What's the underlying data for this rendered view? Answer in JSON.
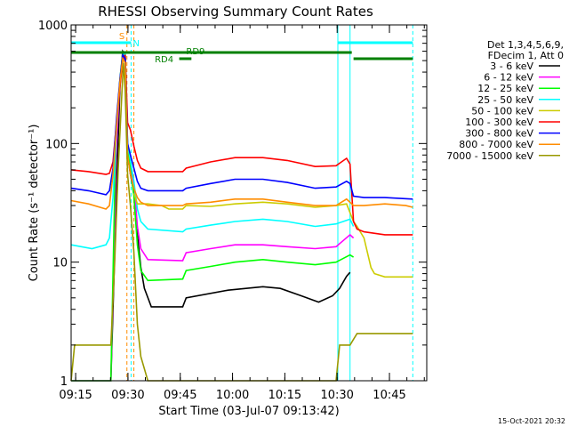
{
  "chart_data": {
    "type": "line",
    "title": "RHESSI Observing Summary Count Rates",
    "xlabel": "Start Time (03-Jul-07 09:13:42)",
    "ylabel": "Count Rate (s⁻¹ detector⁻¹)",
    "yscale": "log",
    "ylim": [
      1,
      1000
    ],
    "xlim_min": [
      0,
      102
    ],
    "x_ticks": [
      {
        "t": 1.3,
        "label": "09:15"
      },
      {
        "t": 16.3,
        "label": "09:30"
      },
      {
        "t": 31.3,
        "label": "09:45"
      },
      {
        "t": 46.3,
        "label": "10:00"
      },
      {
        "t": 61.3,
        "label": "10:15"
      },
      {
        "t": 76.3,
        "label": "10:30"
      },
      {
        "t": 91.3,
        "label": "10:45"
      }
    ],
    "y_ticks": [
      {
        "v": 1,
        "label": "1"
      },
      {
        "v": 10,
        "label": "10"
      },
      {
        "v": 100,
        "label": "100"
      },
      {
        "v": 1000,
        "label": "1000"
      }
    ],
    "legend_header": [
      "Det 1,3,4,5,6,9,",
      "FDecim 1, Att 0"
    ],
    "legend_placement": "right",
    "series": [
      {
        "name": "3 - 6 keV",
        "color": "#000000",
        "points": [
          [
            0,
            1
          ],
          [
            11.4,
            1
          ],
          [
            13.2,
            60
          ],
          [
            14,
            300
          ],
          [
            14.8,
            600
          ],
          [
            15.5,
            560
          ],
          [
            16.2,
            80
          ],
          [
            17,
            55
          ],
          [
            18.2,
            36
          ],
          [
            19,
            17
          ],
          [
            20,
            9
          ],
          [
            21,
            6
          ],
          [
            23,
            4.2
          ],
          [
            32,
            4.2
          ],
          [
            33,
            5
          ],
          [
            45,
            5.8
          ],
          [
            55,
            6.2
          ],
          [
            60,
            6
          ],
          [
            66,
            5.2
          ],
          [
            71,
            4.6
          ],
          [
            75,
            5.2
          ],
          [
            77,
            6
          ],
          [
            79,
            7.6
          ],
          [
            80,
            8.2
          ]
        ]
      },
      {
        "name": "6 - 12 keV",
        "color": "#ff00ff",
        "points": [
          [
            0,
            1
          ],
          [
            11.4,
            1
          ],
          [
            13,
            100
          ],
          [
            14,
            330
          ],
          [
            14.8,
            580
          ],
          [
            15.5,
            500
          ],
          [
            16.2,
            90
          ],
          [
            17,
            62
          ],
          [
            18.2,
            40
          ],
          [
            19,
            20
          ],
          [
            20,
            13
          ],
          [
            22,
            10.5
          ],
          [
            32,
            10.3
          ],
          [
            33,
            12
          ],
          [
            40,
            13
          ],
          [
            47,
            14
          ],
          [
            55,
            14
          ],
          [
            62,
            13.5
          ],
          [
            70,
            13
          ],
          [
            76,
            13.5
          ],
          [
            80,
            17
          ],
          [
            81,
            16
          ]
        ]
      },
      {
        "name": "12 - 25 keV",
        "color": "#00ff00",
        "points": [
          [
            0,
            1
          ],
          [
            11.4,
            1
          ],
          [
            12.8,
            110
          ],
          [
            14,
            350
          ],
          [
            14.8,
            580
          ],
          [
            15.5,
            520
          ],
          [
            16.2,
            95
          ],
          [
            17,
            60
          ],
          [
            18,
            36
          ],
          [
            19,
            14
          ],
          [
            20,
            8.5
          ],
          [
            22,
            7
          ],
          [
            32,
            7.2
          ],
          [
            33,
            8.5
          ],
          [
            40,
            9.2
          ],
          [
            47,
            10
          ],
          [
            55,
            10.5
          ],
          [
            62,
            10
          ],
          [
            70,
            9.5
          ],
          [
            76,
            10
          ],
          [
            80,
            11.5
          ],
          [
            81,
            11
          ]
        ]
      },
      {
        "name": "25 - 50 keV",
        "color": "#00ffff",
        "points": [
          [
            0,
            14
          ],
          [
            6,
            13
          ],
          [
            10,
            14
          ],
          [
            11,
            16
          ],
          [
            12,
            35
          ],
          [
            13,
            140
          ],
          [
            14,
            320
          ],
          [
            14.8,
            540
          ],
          [
            15.5,
            600
          ],
          [
            16.2,
            100
          ],
          [
            17,
            72
          ],
          [
            18,
            48
          ],
          [
            19,
            28
          ],
          [
            20,
            22
          ],
          [
            22,
            19
          ],
          [
            32,
            18
          ],
          [
            33,
            19
          ],
          [
            40,
            20.5
          ],
          [
            47,
            22
          ],
          [
            55,
            23
          ],
          [
            62,
            22
          ],
          [
            70,
            20
          ],
          [
            76,
            21
          ],
          [
            80,
            23
          ],
          [
            81,
            20
          ]
        ]
      },
      {
        "name": "50 - 100 keV",
        "color": "#cccc00",
        "points": [
          [
            18,
            38
          ],
          [
            19,
            31
          ],
          [
            22,
            31
          ],
          [
            26,
            30
          ],
          [
            28,
            28
          ],
          [
            32,
            28
          ],
          [
            33,
            30
          ],
          [
            40,
            29.5
          ],
          [
            47,
            31
          ],
          [
            55,
            32
          ],
          [
            62,
            31
          ],
          [
            70,
            29
          ],
          [
            76,
            30
          ],
          [
            79,
            31
          ],
          [
            81,
            22
          ],
          [
            82,
            20
          ],
          [
            84,
            16
          ],
          [
            86,
            9
          ],
          [
            87,
            8
          ],
          [
            90,
            7.5
          ],
          [
            98,
            7.5
          ]
        ]
      },
      {
        "name": "100 - 300 keV",
        "color": "#ff0000",
        "points": [
          [
            0,
            60
          ],
          [
            5,
            58
          ],
          [
            10,
            55
          ],
          [
            11,
            56
          ],
          [
            12,
            70
          ],
          [
            13,
            150
          ],
          [
            14,
            300
          ],
          [
            14.8,
            500
          ],
          [
            15.5,
            560
          ],
          [
            16.2,
            150
          ],
          [
            17,
            130
          ],
          [
            18,
            95
          ],
          [
            19,
            72
          ],
          [
            20,
            62
          ],
          [
            22,
            58
          ],
          [
            32,
            58
          ],
          [
            33,
            62
          ],
          [
            40,
            70
          ],
          [
            47,
            76
          ],
          [
            55,
            76
          ],
          [
            62,
            72
          ],
          [
            70,
            64
          ],
          [
            76,
            65
          ],
          [
            79,
            75
          ],
          [
            80,
            67
          ],
          [
            81,
            22
          ],
          [
            82,
            19
          ],
          [
            84,
            18
          ],
          [
            90,
            17
          ],
          [
            98,
            17
          ]
        ]
      },
      {
        "name": "300 - 800 keV",
        "color": "#0000ff",
        "points": [
          [
            0,
            42
          ],
          [
            5,
            40
          ],
          [
            10,
            37
          ],
          [
            11,
            40
          ],
          [
            12,
            62
          ],
          [
            13,
            160
          ],
          [
            14,
            350
          ],
          [
            14.8,
            560
          ],
          [
            15.5,
            520
          ],
          [
            16.2,
            100
          ],
          [
            17,
            80
          ],
          [
            18,
            62
          ],
          [
            19,
            48
          ],
          [
            20,
            42
          ],
          [
            22,
            40
          ],
          [
            32,
            40
          ],
          [
            33,
            42
          ],
          [
            40,
            46
          ],
          [
            47,
            50
          ],
          [
            55,
            50
          ],
          [
            62,
            47
          ],
          [
            70,
            42
          ],
          [
            76,
            43
          ],
          [
            79,
            48
          ],
          [
            80,
            46
          ],
          [
            81,
            36
          ],
          [
            84,
            35
          ],
          [
            90,
            35
          ],
          [
            98,
            34
          ]
        ]
      },
      {
        "name": "800 - 7000 keV",
        "color": "#ff8c00",
        "points": [
          [
            0,
            33
          ],
          [
            5,
            31
          ],
          [
            10,
            28
          ],
          [
            11,
            30
          ],
          [
            12,
            55
          ],
          [
            13,
            140
          ],
          [
            14,
            330
          ],
          [
            14.8,
            520
          ],
          [
            15.5,
            480
          ],
          [
            16.2,
            80
          ],
          [
            17,
            55
          ],
          [
            18,
            42
          ],
          [
            19,
            35
          ],
          [
            20,
            32
          ],
          [
            22,
            30
          ],
          [
            32,
            30
          ],
          [
            33,
            31
          ],
          [
            40,
            32
          ],
          [
            47,
            34
          ],
          [
            55,
            34
          ],
          [
            62,
            32
          ],
          [
            70,
            30
          ],
          [
            76,
            30
          ],
          [
            79,
            34
          ],
          [
            81,
            30
          ],
          [
            84,
            30
          ],
          [
            90,
            31
          ],
          [
            96,
            30
          ],
          [
            98,
            29
          ]
        ]
      },
      {
        "name": "7000 - 15000 keV",
        "color": "#999900",
        "points": [
          [
            0,
            1
          ],
          [
            1,
            2
          ],
          [
            11.4,
            2
          ],
          [
            12.5,
            10
          ],
          [
            13.5,
            60
          ],
          [
            14.5,
            250
          ],
          [
            15,
            480
          ],
          [
            15.5,
            280
          ],
          [
            16.2,
            55
          ],
          [
            17,
            30
          ],
          [
            18,
            12
          ],
          [
            19,
            3
          ],
          [
            20,
            1.6
          ],
          [
            22,
            1
          ],
          [
            76,
            1
          ],
          [
            77,
            2
          ],
          [
            80,
            2
          ],
          [
            82,
            2.5
          ],
          [
            98,
            2.5
          ]
        ]
      }
    ],
    "instrument_lines": [
      {
        "label": "S",
        "color": "#ff8c00",
        "x0": 14.5,
        "x1": 16.2,
        "row": "top"
      },
      {
        "label": "N",
        "color": "#00ffff",
        "x0": 0,
        "x1": 17.2,
        "row": "top"
      },
      {
        "label": "",
        "color": "#00ffff",
        "x0": 76.5,
        "x1": 98,
        "row": "top"
      },
      {
        "label": "RD9",
        "color": "#008000",
        "x0": 0,
        "x1": 80.5,
        "row": "mid"
      },
      {
        "label": "",
        "color": "#008000",
        "x0": 81,
        "x1": 98,
        "row": "low"
      },
      {
        "label": "RD4",
        "color": "#008000",
        "x0": 31,
        "x1": 34.5,
        "row": "low"
      }
    ],
    "vlines": [
      {
        "x": 0,
        "color": "#00ffff",
        "style": "solid"
      },
      {
        "x": 16,
        "color": "#ff8c00",
        "style": "dashed"
      },
      {
        "x": 17.2,
        "color": "#00ffff",
        "style": "dashed"
      },
      {
        "x": 18,
        "color": "#ff8c00",
        "style": "dashed"
      },
      {
        "x": 76.5,
        "color": "#00ffff",
        "style": "solid"
      },
      {
        "x": 80,
        "color": "#00ffff",
        "style": "solid"
      },
      {
        "x": 98,
        "color": "#00ffff",
        "style": "dashed"
      }
    ],
    "footer_date": "15-Oct-2021 20:32"
  }
}
